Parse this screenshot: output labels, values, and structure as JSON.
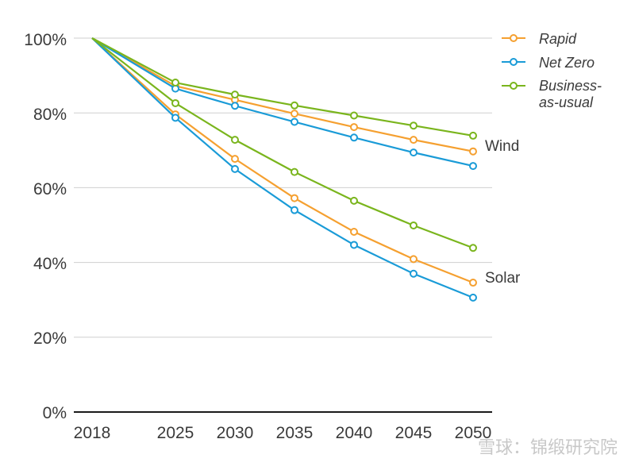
{
  "chart_data": {
    "type": "line",
    "title": "",
    "xlabel": "",
    "ylabel": "",
    "x": [
      2018,
      2025,
      2030,
      2035,
      2040,
      2045,
      2050
    ],
    "x_tick_labels": [
      "2018",
      "2025",
      "2030",
      "2035",
      "2040",
      "2045",
      "2050"
    ],
    "ylim": [
      0,
      100
    ],
    "y_ticks": [
      0,
      20,
      40,
      60,
      80,
      100
    ],
    "y_tick_labels": [
      "0%",
      "20%",
      "40%",
      "60%",
      "80%",
      "100%"
    ],
    "grid": true,
    "legend_position": "top-right",
    "legend": [
      {
        "key": "rapid",
        "label_lines": [
          "Rapid"
        ]
      },
      {
        "key": "netzero",
        "label_lines": [
          "Net Zero"
        ]
      },
      {
        "key": "bau",
        "label_lines": [
          "Business-",
          "as-usual"
        ]
      }
    ],
    "series": [
      {
        "name": "Rapid",
        "group": "Wind",
        "color": "#f5a030",
        "values": [
          100,
          87.2,
          83.5,
          79.8,
          76.2,
          72.8,
          69.7
        ]
      },
      {
        "name": "Net Zero",
        "group": "Wind",
        "color": "#1a9bd7",
        "values": [
          100,
          86.5,
          81.9,
          77.6,
          73.4,
          69.4,
          65.8
        ]
      },
      {
        "name": "Business-as-usual",
        "group": "Wind",
        "color": "#7ab51d",
        "values": [
          100,
          88.1,
          84.9,
          82.0,
          79.3,
          76.6,
          73.9
        ]
      },
      {
        "name": "Rapid",
        "group": "Solar",
        "color": "#f5a030",
        "values": [
          100,
          79.6,
          67.7,
          57.2,
          48.2,
          40.9,
          34.6
        ]
      },
      {
        "name": "Net Zero",
        "group": "Solar",
        "color": "#1a9bd7",
        "values": [
          100,
          78.7,
          65.0,
          54.0,
          44.7,
          37.0,
          30.6
        ]
      },
      {
        "name": "Business-as-usual",
        "group": "Solar",
        "color": "#7ab51d",
        "values": [
          100,
          82.6,
          72.8,
          64.2,
          56.5,
          49.9,
          43.9
        ]
      }
    ],
    "annotations": [
      {
        "text": "Wind",
        "at_x": 2050,
        "at_y": 71.5
      },
      {
        "text": "Solar",
        "at_x": 2050,
        "at_y": 36.0
      }
    ]
  },
  "watermark": "雪球：锦缎研究院"
}
